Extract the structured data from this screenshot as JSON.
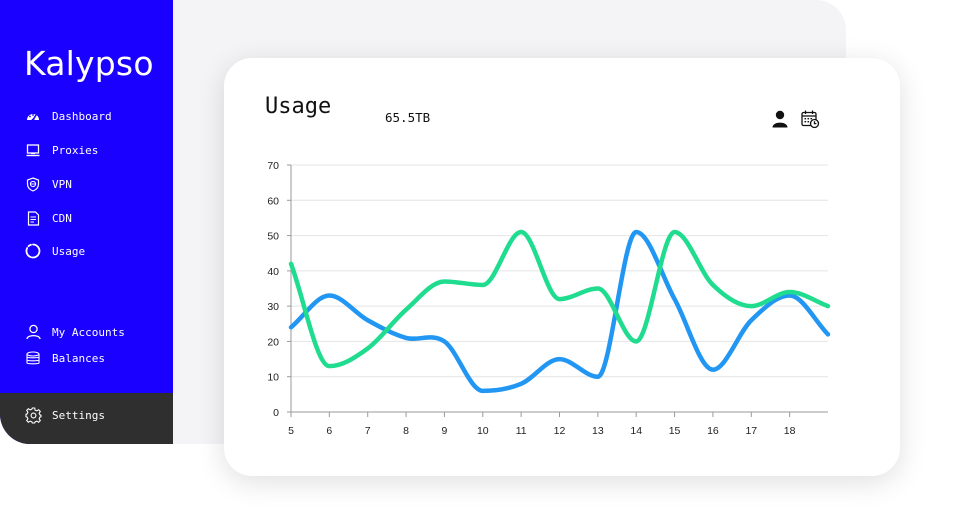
{
  "app": {
    "name": "Kalypso"
  },
  "sidebar": {
    "items": [
      {
        "label": "Dashboard",
        "icon": "dashboard-gauge-icon"
      },
      {
        "label": "Proxies",
        "icon": "monitor-icon"
      },
      {
        "label": "VPN",
        "icon": "shield-icon"
      },
      {
        "label": "CDN",
        "icon": "cdn-document-icon"
      },
      {
        "label": "Usage",
        "icon": "usage-ring-icon"
      }
    ],
    "account_items": [
      {
        "label": "My Accounts",
        "icon": "user-outline-icon"
      },
      {
        "label": "Balances",
        "icon": "coins-stack-icon"
      }
    ],
    "settings": {
      "label": "Settings",
      "icon": "gear-icon"
    }
  },
  "card": {
    "title": "Usage",
    "total": "65.5TB",
    "icons": [
      "user-icon",
      "calendar-clock-icon"
    ]
  },
  "colors": {
    "sidebar": "#1a00ff",
    "settings_bar": "#2f2f2f",
    "series_blue": "#2196f3",
    "series_green": "#1fdc8f"
  },
  "chart_data": {
    "type": "line",
    "x": [
      5,
      6,
      7,
      8,
      9,
      10,
      11,
      12,
      13,
      14,
      15,
      16,
      17,
      18,
      19
    ],
    "x_tick_labels": [
      "5",
      "6",
      "7",
      "8",
      "9",
      "10",
      "11",
      "12",
      "13",
      "14",
      "15",
      "16",
      "17",
      "18"
    ],
    "ylim": [
      0,
      70
    ],
    "yticks": [
      0,
      10,
      20,
      30,
      40,
      50,
      60,
      70
    ],
    "grid": true,
    "series": [
      {
        "color": "#2196f3",
        "values": [
          24,
          33,
          26,
          21,
          20,
          6,
          8,
          15,
          10,
          51,
          32,
          12,
          26,
          33,
          22
        ]
      },
      {
        "color": "#1fdc8f",
        "values": [
          42,
          13,
          18,
          29,
          37,
          36,
          51,
          32,
          35,
          20,
          51,
          36,
          30,
          34,
          30
        ]
      }
    ]
  }
}
